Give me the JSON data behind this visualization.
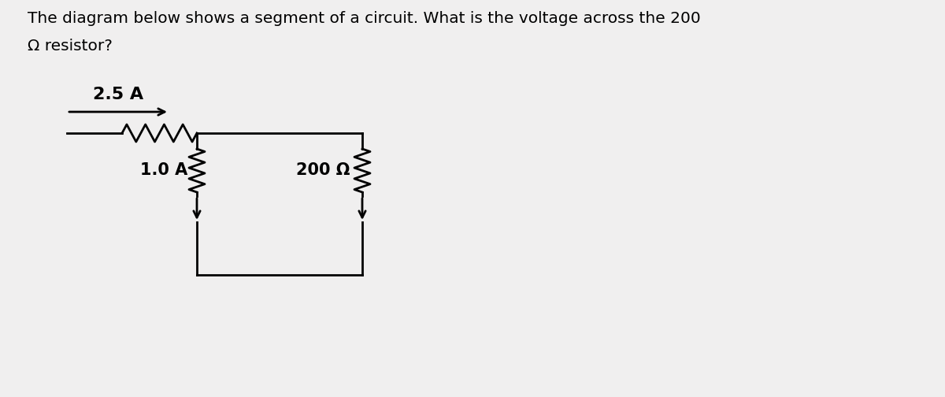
{
  "title_line1": "The diagram below shows a segment of a circuit. What is the voltage across the 200",
  "title_line2": "Ω resistor?",
  "title_fontsize": 14.5,
  "background_color": "#f0efef",
  "line_color": "#000000",
  "text_color": "#000000",
  "current_top": "2.5 A",
  "current_left": "1.0 A",
  "resistor_label": "200 Ω",
  "fig_width": 12.0,
  "fig_height": 5.04
}
